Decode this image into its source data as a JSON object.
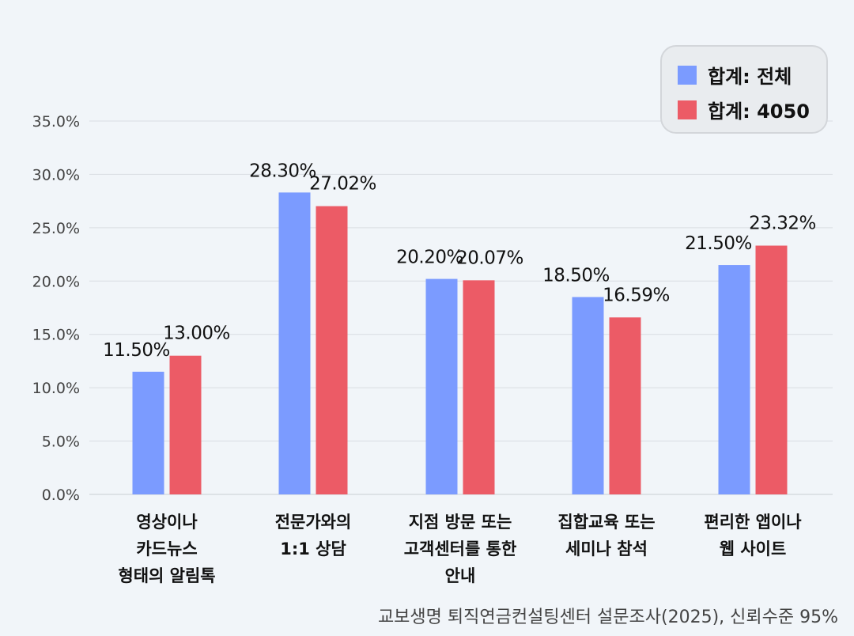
{
  "chart_data": {
    "type": "bar",
    "categories": [
      [
        "영상이나",
        "카드뉴스",
        "형태의 알림톡"
      ],
      [
        "전문가와의",
        "1:1 상담"
      ],
      [
        "지점 방문 또는",
        "고객센터를 통한",
        "안내"
      ],
      [
        "집합교육 또는",
        "세미나 참석"
      ],
      [
        "편리한 앱이나",
        "웹 사이트"
      ]
    ],
    "series": [
      {
        "name": "합계: 전체",
        "color": "#7b9bff",
        "values": [
          11.5,
          28.3,
          20.2,
          18.5,
          21.5
        ],
        "labels": [
          "11.50%",
          "28.30%",
          "20.20%",
          "18.50%",
          "21.50%"
        ]
      },
      {
        "name": "합계: 4050",
        "color": "#ec5b66",
        "values": [
          13.0,
          27.02,
          20.07,
          16.59,
          23.32
        ],
        "labels": [
          "13.00%",
          "27.02%",
          "20.07%",
          "16.59%",
          "23.32%"
        ]
      }
    ],
    "ylim": [
      0,
      35
    ],
    "yticks": [
      "0.0%",
      "5.0%",
      "10.0%",
      "15.0%",
      "20.0%",
      "25.0%",
      "30.0%",
      "35.0%"
    ],
    "grid": true,
    "legend_position": "top-right",
    "source": "교보생명 퇴직연금컨설팅센터 설문조사(2025), 신뢰수준 95%"
  }
}
